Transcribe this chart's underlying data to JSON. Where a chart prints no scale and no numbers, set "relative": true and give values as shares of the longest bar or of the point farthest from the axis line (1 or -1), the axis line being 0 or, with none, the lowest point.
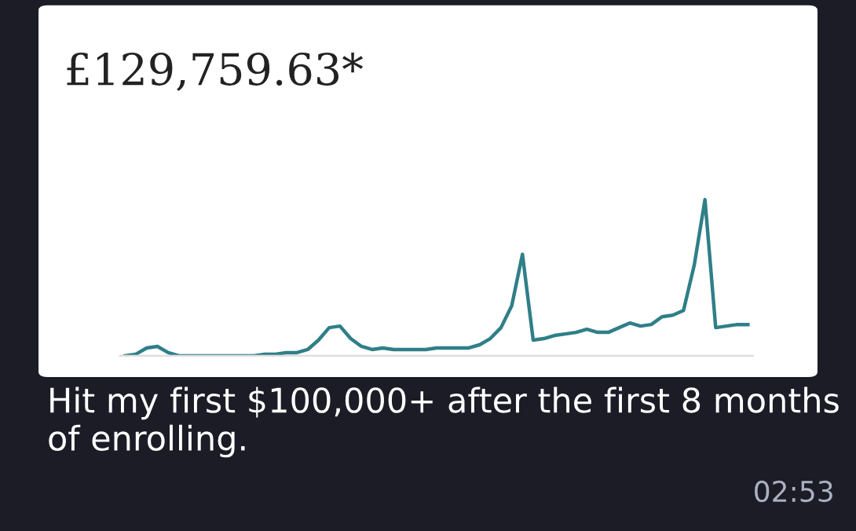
{
  "chart_data": {
    "type": "line",
    "title": "£129,759.63*",
    "relative": true,
    "color": "#2f7f88",
    "marker": "none",
    "line_style": "solid",
    "categories": [
      null,
      null,
      null,
      null,
      null,
      null,
      null,
      null,
      null,
      null,
      null,
      null,
      null,
      null,
      null,
      null,
      null,
      null,
      null,
      null,
      null,
      null,
      null,
      null,
      null,
      null,
      null,
      null,
      null,
      null,
      null,
      null,
      null,
      null,
      null,
      null,
      null,
      null,
      null,
      null,
      null,
      null,
      null,
      null,
      null,
      null,
      null,
      null,
      null,
      null,
      null,
      null,
      null,
      null,
      null,
      null,
      null,
      null,
      null
    ],
    "values": [
      0,
      0.01,
      0.05,
      0.06,
      0.02,
      0,
      0,
      0,
      0,
      0,
      0,
      0,
      0,
      0.01,
      0.01,
      0.02,
      0.02,
      0.04,
      0.1,
      0.18,
      0.19,
      0.11,
      0.06,
      0.04,
      0.05,
      0.04,
      0.04,
      0.04,
      0.04,
      0.05,
      0.05,
      0.05,
      0.05,
      0.07,
      0.11,
      0.18,
      0.32,
      0.65,
      0.1,
      0.11,
      0.13,
      0.14,
      0.15,
      0.17,
      0.15,
      0.15,
      0.18,
      0.21,
      0.19,
      0.2,
      0.25,
      0.26,
      0.29,
      0.58,
      1,
      0.18,
      0.19,
      0.2,
      0.2
    ],
    "annotations": [
      "Hit my first $100,000+ after the first 8 months of enrolling.",
      "02:53"
    ]
  }
}
